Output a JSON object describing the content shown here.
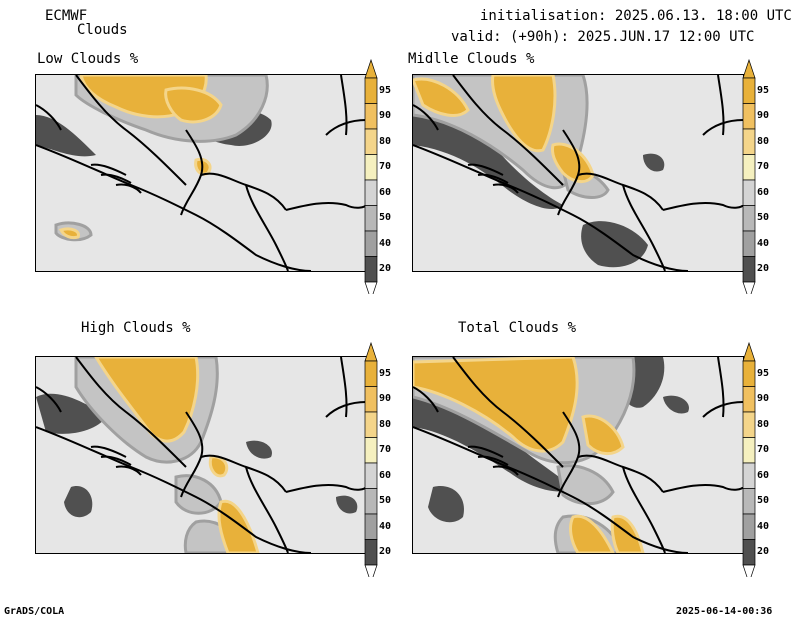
{
  "header": {
    "model": "ECMWF",
    "product": "Clouds",
    "init": "initialisation: 2025.06.13. 18:00 UTC",
    "valid": "valid: (+90h): 2025.JUN.17 12:00 UTC"
  },
  "panels": [
    {
      "title": "Low Clouds %"
    },
    {
      "title": "Midlle Clouds %"
    },
    {
      "title": "High Clouds %"
    },
    {
      "title": "Total Clouds %"
    }
  ],
  "colorbar": {
    "ticks": [
      "95",
      "90",
      "80",
      "70",
      "60",
      "50",
      "40",
      "20"
    ],
    "colors": [
      "#e8b13a",
      "#f0c060",
      "#f4d58a",
      "#f5f0bf",
      "#d4d4d4",
      "#b8b8b8",
      "#a0a0a0",
      "#505050"
    ]
  },
  "footer": {
    "left": "GrADS/COLA",
    "right": "2025-06-14-00:36"
  },
  "colors": {
    "background_field": "#e6e6e6",
    "dark_gray": "#505050",
    "mid_gray": "#a0a0a0",
    "light_gray": "#c4c4c4",
    "orange": "#e8b13a",
    "light_orange": "#f4d58a",
    "border": "#000000"
  }
}
